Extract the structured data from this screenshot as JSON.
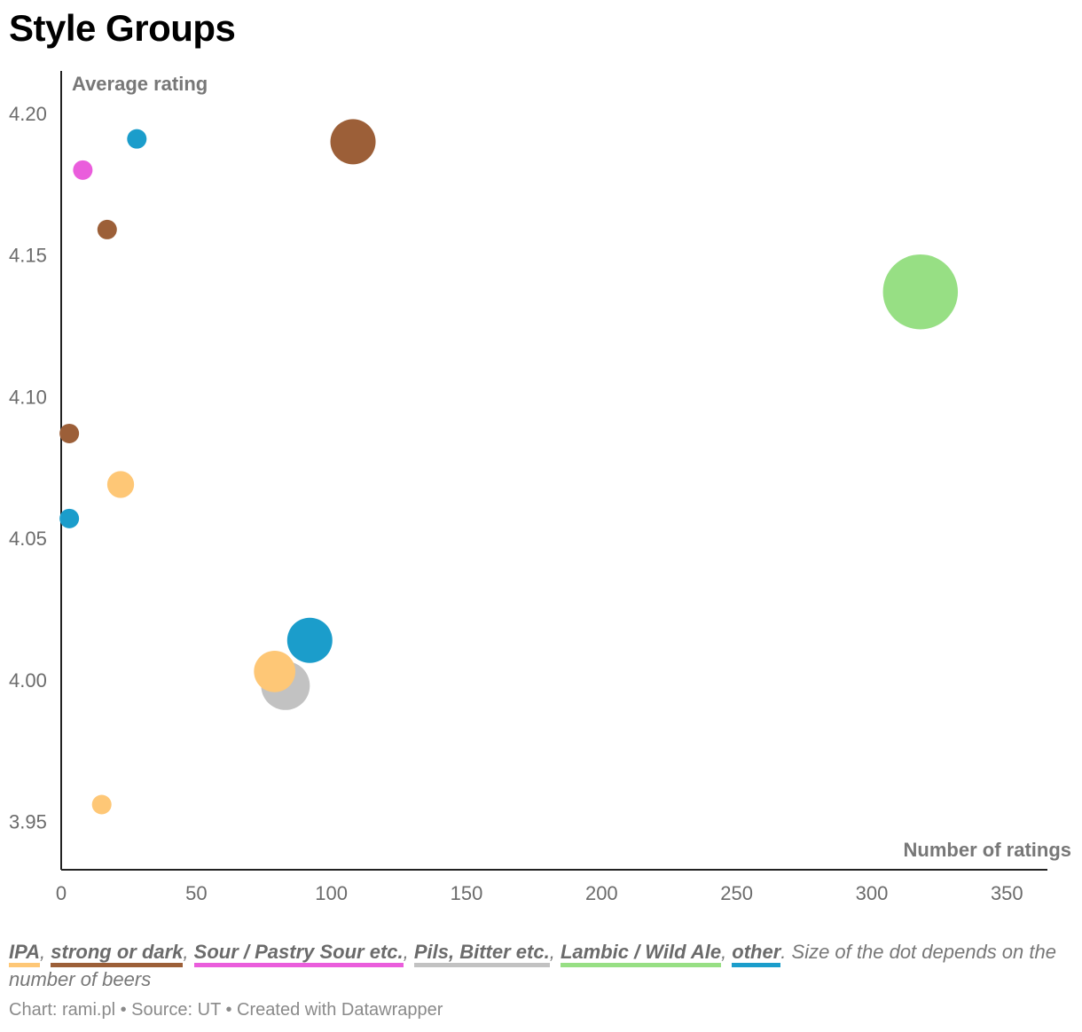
{
  "title": "Style Groups",
  "chart_data": {
    "type": "scatter",
    "title": "Style Groups",
    "xlabel": "Number of ratings",
    "ylabel": "Average rating",
    "xlim": [
      0,
      365
    ],
    "ylim": [
      3.933,
      4.215
    ],
    "x_ticks": [
      "0",
      "50",
      "100",
      "150",
      "200",
      "250",
      "300",
      "350"
    ],
    "x_tick_values": [
      0,
      50,
      100,
      150,
      200,
      250,
      300,
      350
    ],
    "y_ticks": [
      "4.20",
      "4.15",
      "4.10",
      "4.05",
      "4.00",
      "3.95"
    ],
    "y_tick_values": [
      4.2,
      4.15,
      4.1,
      4.05,
      4.0,
      3.95
    ],
    "grid": false,
    "size_encoding": "number of beers (relative)",
    "series": [
      {
        "name": "IPA",
        "color": "#fec776",
        "points": [
          {
            "x": 22,
            "y": 4.069,
            "size": 2
          },
          {
            "x": 79,
            "y": 4.003,
            "size": 5
          },
          {
            "x": 15,
            "y": 3.956,
            "size": 1
          }
        ]
      },
      {
        "name": "strong or dark",
        "color": "#9c5f38",
        "points": [
          {
            "x": 108,
            "y": 4.19,
            "size": 6
          },
          {
            "x": 17,
            "y": 4.159,
            "size": 1
          },
          {
            "x": 3,
            "y": 4.087,
            "size": 1
          }
        ]
      },
      {
        "name": "Sour / Pastry Sour etc.",
        "color": "#ea5ddc",
        "points": [
          {
            "x": 8,
            "y": 4.18,
            "size": 1
          }
        ]
      },
      {
        "name": "Pils, Bitter etc.",
        "color": "#c2c2c2",
        "points": [
          {
            "x": 83,
            "y": 3.998,
            "size": 7
          }
        ]
      },
      {
        "name": "Lambic / Wild Ale",
        "color": "#97df84",
        "points": [
          {
            "x": 318,
            "y": 4.137,
            "size": 17
          }
        ]
      },
      {
        "name": "other",
        "color": "#1b9dcb",
        "points": [
          {
            "x": 28,
            "y": 4.191,
            "size": 1
          },
          {
            "x": 3,
            "y": 4.057,
            "size": 1
          },
          {
            "x": 92,
            "y": 4.014,
            "size": 6
          }
        ]
      }
    ]
  },
  "legend": {
    "items": [
      {
        "label": "IPA",
        "color": "#fec776"
      },
      {
        "label": "strong or dark",
        "color": "#9c5f38"
      },
      {
        "label": "Sour / Pastry Sour etc.",
        "color": "#ea5ddc"
      },
      {
        "label": "Pils, Bitter etc.",
        "color": "#c2c2c2"
      },
      {
        "label": "Lambic / Wild Ale",
        "color": "#97df84"
      },
      {
        "label": "other",
        "color": "#1b9dcb"
      }
    ],
    "note": ". Size of the dot depends on the number of beers"
  },
  "footer": "Chart: rami.pl • Source: UT • Created with Datawrapper"
}
